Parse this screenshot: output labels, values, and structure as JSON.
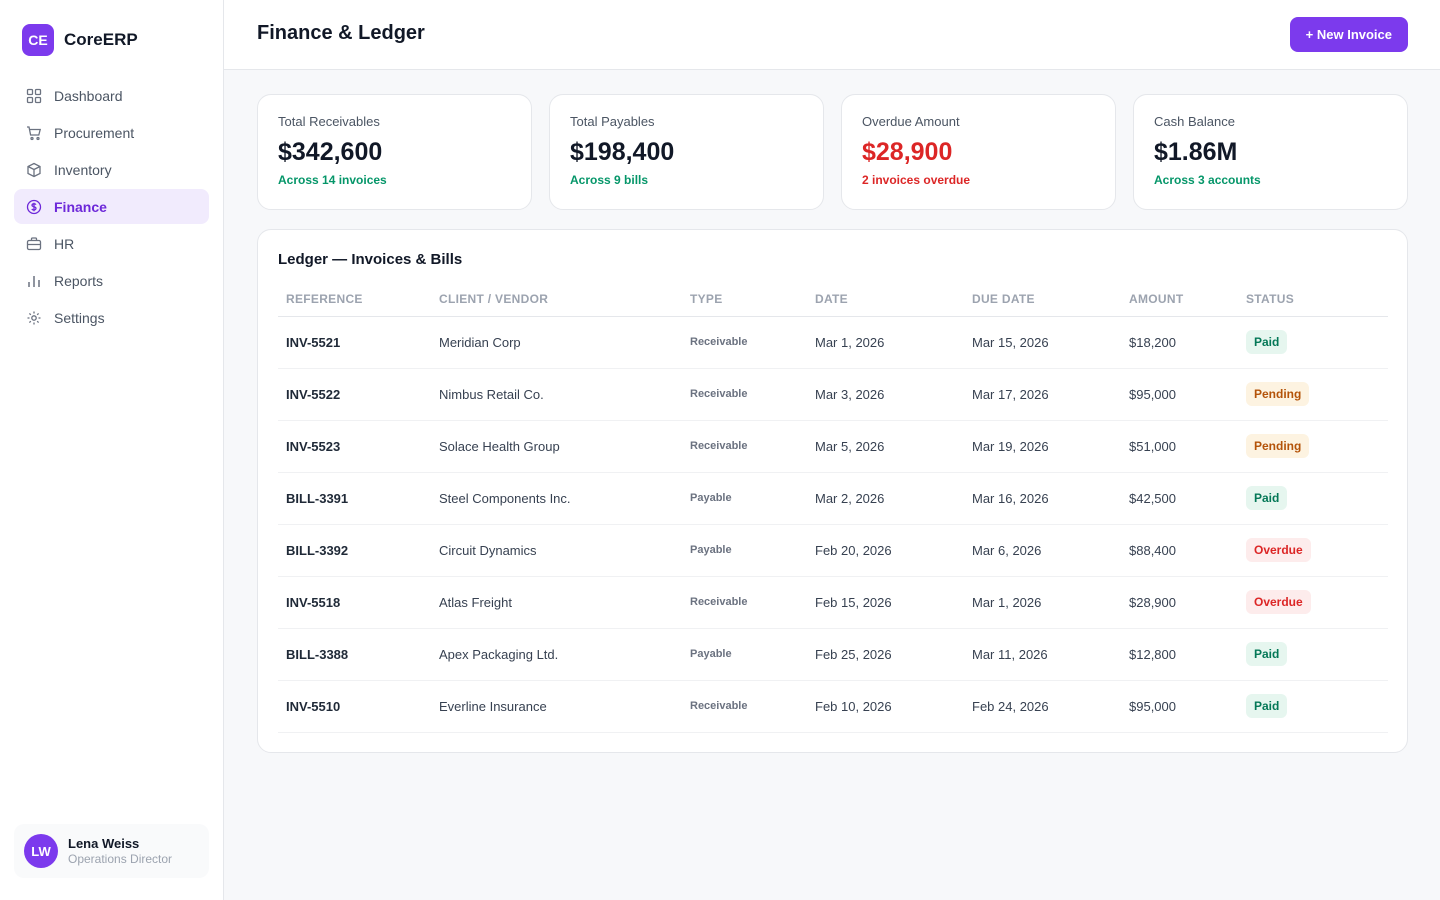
{
  "brand": {
    "logo_text": "CE",
    "name": "CoreERP"
  },
  "nav": [
    {
      "label": "Dashboard",
      "icon": "grid-icon",
      "active": false
    },
    {
      "label": "Procurement",
      "icon": "cart-icon",
      "active": false
    },
    {
      "label": "Inventory",
      "icon": "box-icon",
      "active": false
    },
    {
      "label": "Finance",
      "icon": "dollar-icon",
      "active": true
    },
    {
      "label": "HR",
      "icon": "briefcase-icon",
      "active": false
    },
    {
      "label": "Reports",
      "icon": "bar-chart-icon",
      "active": false
    },
    {
      "label": "Settings",
      "icon": "gear-icon",
      "active": false
    }
  ],
  "user": {
    "initials": "LW",
    "name": "Lena Weiss",
    "role": "Operations Director"
  },
  "header": {
    "title": "Finance & Ledger",
    "new_button": "+ New Invoice"
  },
  "stats": [
    {
      "label": "Total Receivables",
      "value": "$342,600",
      "sub": "Across 14 invoices",
      "tone": "normal"
    },
    {
      "label": "Total Payables",
      "value": "$198,400",
      "sub": "Across 9 bills",
      "tone": "normal"
    },
    {
      "label": "Overdue Amount",
      "value": "$28,900",
      "sub": "2 invoices overdue",
      "tone": "danger"
    },
    {
      "label": "Cash Balance",
      "value": "$1.86M",
      "sub": "Across 3 accounts",
      "tone": "normal"
    }
  ],
  "ledger": {
    "title": "Ledger — Invoices & Bills",
    "columns": [
      "REFERENCE",
      "CLIENT / VENDOR",
      "TYPE",
      "DATE",
      "DUE DATE",
      "AMOUNT",
      "STATUS"
    ],
    "rows": [
      {
        "ref": "INV-5521",
        "party": "Meridian Corp",
        "type": "Receivable",
        "date": "Mar 1, 2026",
        "due": "Mar 15, 2026",
        "amount": "$18,200",
        "status": "Paid"
      },
      {
        "ref": "INV-5522",
        "party": "Nimbus Retail Co.",
        "type": "Receivable",
        "date": "Mar 3, 2026",
        "due": "Mar 17, 2026",
        "amount": "$95,000",
        "status": "Pending"
      },
      {
        "ref": "INV-5523",
        "party": "Solace Health Group",
        "type": "Receivable",
        "date": "Mar 5, 2026",
        "due": "Mar 19, 2026",
        "amount": "$51,000",
        "status": "Pending"
      },
      {
        "ref": "BILL-3391",
        "party": "Steel Components Inc.",
        "type": "Payable",
        "date": "Mar 2, 2026",
        "due": "Mar 16, 2026",
        "amount": "$42,500",
        "status": "Paid"
      },
      {
        "ref": "BILL-3392",
        "party": "Circuit Dynamics",
        "type": "Payable",
        "date": "Feb 20, 2026",
        "due": "Mar 6, 2026",
        "amount": "$88,400",
        "status": "Overdue"
      },
      {
        "ref": "INV-5518",
        "party": "Atlas Freight",
        "type": "Receivable",
        "date": "Feb 15, 2026",
        "due": "Mar 1, 2026",
        "amount": "$28,900",
        "status": "Overdue"
      },
      {
        "ref": "BILL-3388",
        "party": "Apex Packaging Ltd.",
        "type": "Payable",
        "date": "Feb 25, 2026",
        "due": "Mar 11, 2026",
        "amount": "$12,800",
        "status": "Paid"
      },
      {
        "ref": "INV-5510",
        "party": "Everline Insurance",
        "type": "Receivable",
        "date": "Feb 10, 2026",
        "due": "Feb 24, 2026",
        "amount": "$95,000",
        "status": "Paid"
      }
    ]
  },
  "colors": {
    "accent": "#7c3aed",
    "success": "#059669",
    "danger": "#dc2626",
    "warning": "#b45309"
  }
}
